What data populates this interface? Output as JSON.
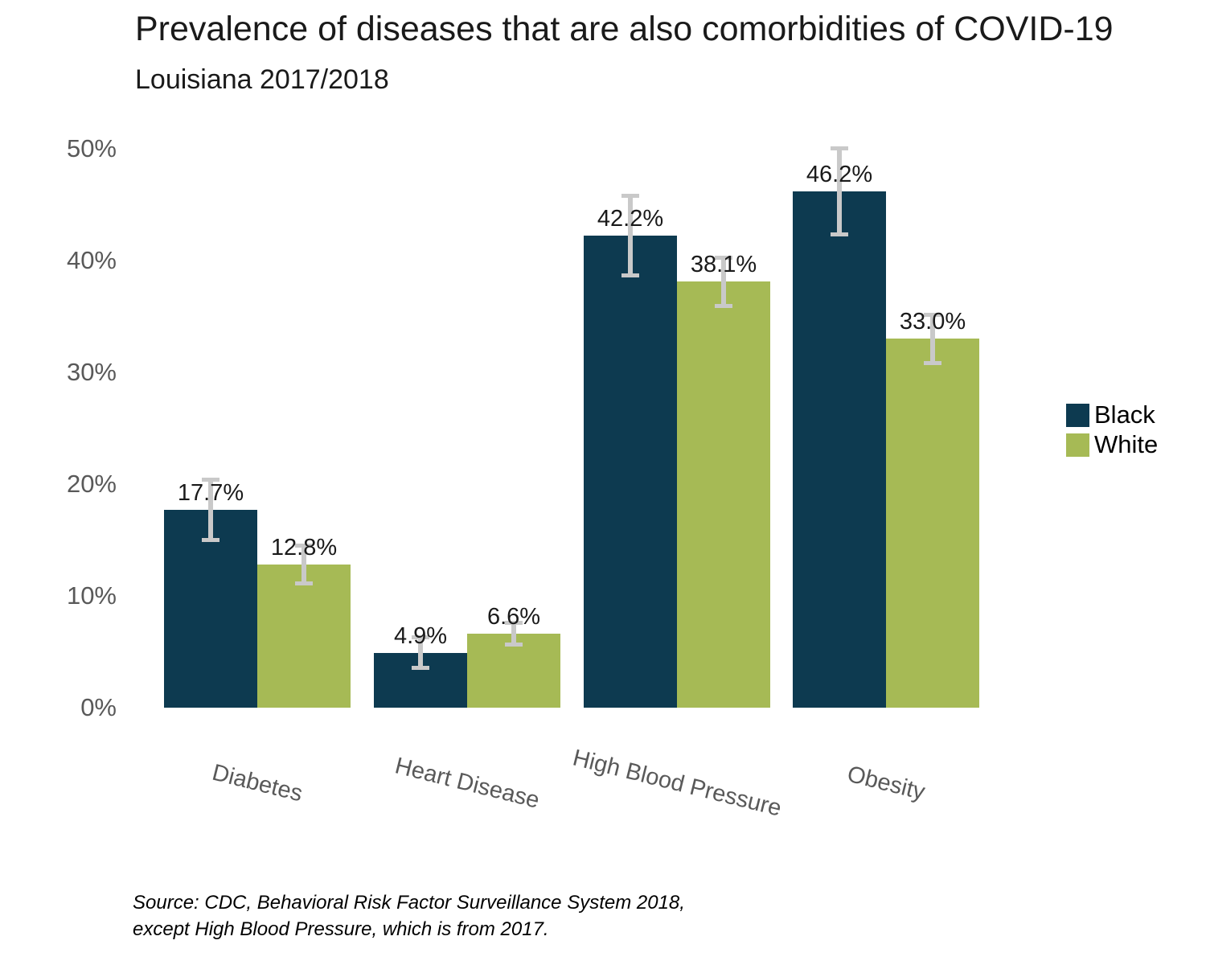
{
  "title": "Prevalence of diseases that are also comorbidities of COVID-19",
  "subtitle": "Louisiana 2017/2018",
  "source": {
    "line1": "Source: CDC, Behavioral Risk Factor Surveillance System 2018,",
    "line2": "except High Blood Pressure, which is from 2017."
  },
  "legend": {
    "position": "right",
    "items": [
      {
        "label": "Black",
        "color": "#0d3a50"
      },
      {
        "label": "White",
        "color": "#a6ba55"
      }
    ]
  },
  "chart_data": {
    "type": "bar",
    "title": "Prevalence of diseases that are also comorbidities of COVID-19",
    "subtitle": "Louisiana 2017/2018",
    "categories": [
      "Diabetes",
      "Heart Disease",
      "High Blood Pressure",
      "Obesity"
    ],
    "series": [
      {
        "name": "Black",
        "color": "#0d3a50",
        "values": [
          17.7,
          4.9,
          42.2,
          46.2
        ],
        "value_labels": [
          "17.7%",
          "4.9%",
          "42.2%",
          "46.2%"
        ],
        "errors": [
          2.7,
          1.4,
          3.6,
          3.9
        ]
      },
      {
        "name": "White",
        "color": "#a6ba55",
        "values": [
          12.8,
          6.6,
          38.1,
          33.0
        ],
        "value_labels": [
          "12.8%",
          "6.6%",
          "38.1%",
          "33.0%"
        ],
        "errors": [
          1.7,
          1.0,
          2.2,
          2.2
        ]
      }
    ],
    "ylim": [
      0,
      50
    ],
    "ytick_values": [
      0,
      10,
      20,
      30,
      40,
      50
    ],
    "ytick_labels": [
      "0%",
      "10%",
      "20%",
      "30%",
      "40%",
      "50%"
    ],
    "xlabel": "",
    "ylabel": "",
    "grid": false,
    "legend_position": "right",
    "error_bar_color": "#c9c9c9"
  }
}
